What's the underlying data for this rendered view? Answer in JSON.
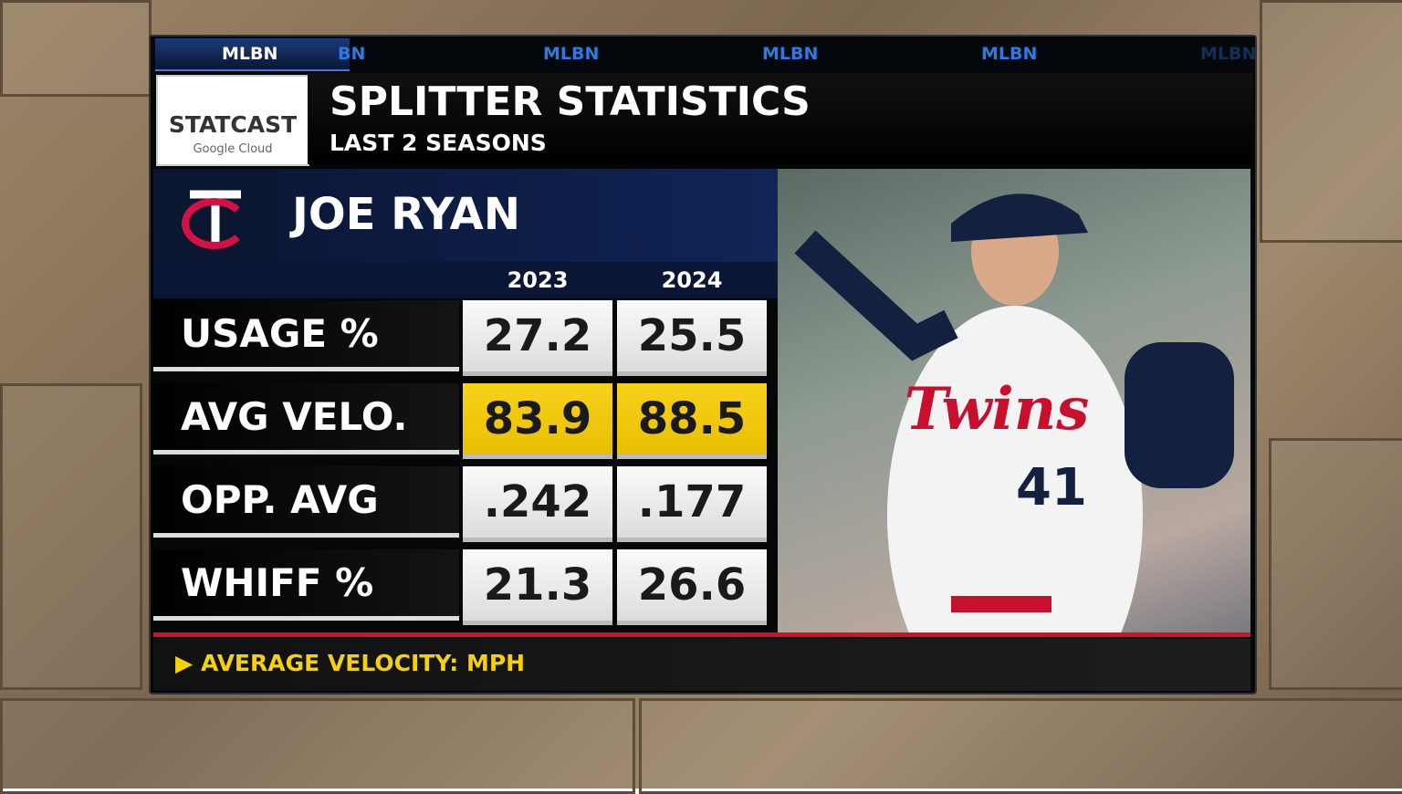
{
  "tabs": [
    "MLBN",
    "BN",
    "MLBN",
    "MLBN",
    "MLBN",
    "MLBN"
  ],
  "logo": {
    "name": "STATCAST",
    "sponsor": "Google Cloud"
  },
  "header": {
    "title": "SPLITTER STATISTICS",
    "subtitle": "LAST 2 SEASONS"
  },
  "player": {
    "name": "JOE RYAN",
    "jersey": "Twins",
    "number": "41"
  },
  "table": {
    "columns": [
      "2023",
      "2024"
    ],
    "rows": [
      {
        "label": "USAGE %",
        "values": [
          "27.2",
          "25.5"
        ],
        "highlight": false
      },
      {
        "label": "AVG VELO.",
        "values": [
          "83.9",
          "88.5"
        ],
        "highlight": true
      },
      {
        "label": "OPP. AVG",
        "values": [
          ".242",
          ".177"
        ],
        "highlight": false
      },
      {
        "label": "WHIFF %",
        "values": [
          "21.3",
          "26.6"
        ],
        "highlight": false
      }
    ]
  },
  "footer": "AVERAGE VELOCITY: MPH"
}
